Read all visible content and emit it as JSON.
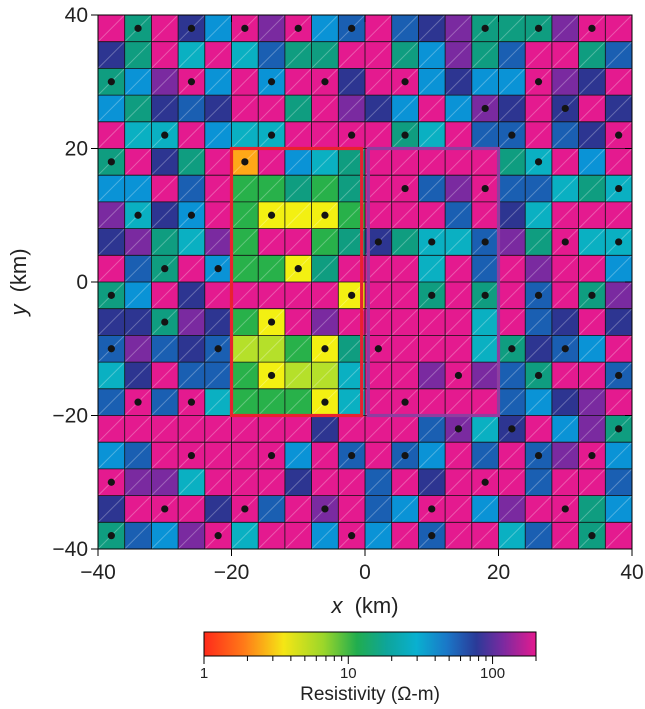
{
  "chart_data": {
    "type": "heatmap",
    "xlabel_var": "x",
    "xlabel_unit": "(km)",
    "ylabel_var": "y",
    "ylabel_unit": "(km)",
    "xlim": [
      -40,
      40
    ],
    "ylim": [
      -40,
      40
    ],
    "x_ticks": [
      -40,
      -20,
      0,
      20,
      40
    ],
    "y_ticks": [
      -40,
      -20,
      0,
      20,
      40
    ],
    "x_tick_labels": [
      "−40",
      "−20",
      "0",
      "20",
      "40"
    ],
    "y_tick_labels": [
      "−40",
      "−20",
      "0",
      "20",
      "40"
    ],
    "cell_size_km": 4,
    "palette": [
      "#ff2a1a",
      "#ffa818",
      "#f3f012",
      "#b5e02a",
      "#28b14a",
      "#0f9d80",
      "#0ab0c2",
      "#0a93d6",
      "#1a5fb2",
      "#2d3591",
      "#7a2aa0",
      "#e41a8f"
    ],
    "cells": [
      [
        11,
        5,
        11,
        9,
        7,
        11,
        10,
        11,
        7,
        8,
        11,
        8,
        9,
        10,
        5,
        5,
        5,
        10,
        11,
        11
      ],
      [
        9,
        5,
        11,
        6,
        11,
        6,
        8,
        5,
        5,
        11,
        11,
        5,
        7,
        10,
        5,
        8,
        11,
        11,
        5,
        8
      ],
      [
        5,
        7,
        10,
        11,
        7,
        11,
        7,
        11,
        11,
        9,
        11,
        11,
        7,
        9,
        7,
        7,
        11,
        10,
        9,
        11
      ],
      [
        7,
        5,
        9,
        8,
        9,
        11,
        11,
        5,
        11,
        10,
        9,
        7,
        11,
        7,
        10,
        9,
        11,
        9,
        11,
        9
      ],
      [
        11,
        6,
        6,
        11,
        7,
        6,
        6,
        11,
        11,
        11,
        11,
        5,
        6,
        11,
        8,
        8,
        11,
        8,
        9,
        11
      ],
      [
        5,
        11,
        9,
        5,
        11,
        1,
        11,
        7,
        6,
        5,
        11,
        11,
        11,
        11,
        11,
        5,
        6,
        11,
        7,
        11
      ],
      [
        7,
        7,
        11,
        8,
        11,
        4,
        4,
        5,
        4,
        5,
        11,
        11,
        8,
        10,
        11,
        8,
        8,
        6,
        5,
        6
      ],
      [
        10,
        6,
        9,
        7,
        11,
        4,
        2,
        2,
        2,
        4,
        11,
        11,
        11,
        8,
        11,
        9,
        6,
        11,
        11,
        11
      ],
      [
        9,
        10,
        5,
        6,
        10,
        4,
        11,
        11,
        4,
        5,
        9,
        5,
        6,
        6,
        8,
        10,
        5,
        11,
        6,
        6
      ],
      [
        11,
        8,
        5,
        11,
        7,
        4,
        4,
        2,
        5,
        11,
        11,
        11,
        6,
        11,
        8,
        11,
        10,
        11,
        11,
        7
      ],
      [
        5,
        7,
        11,
        9,
        11,
        11,
        11,
        11,
        11,
        2,
        11,
        11,
        5,
        11,
        5,
        11,
        8,
        11,
        5,
        10
      ],
      [
        9,
        9,
        5,
        10,
        9,
        4,
        2,
        11,
        10,
        11,
        11,
        11,
        11,
        11,
        6,
        11,
        8,
        9,
        11,
        9
      ],
      [
        8,
        10,
        8,
        9,
        8,
        3,
        3,
        4,
        2,
        5,
        11,
        11,
        11,
        11,
        6,
        5,
        9,
        8,
        7,
        11
      ],
      [
        6,
        9,
        11,
        8,
        8,
        4,
        2,
        3,
        3,
        6,
        11,
        11,
        10,
        11,
        10,
        8,
        5,
        11,
        11,
        8
      ],
      [
        8,
        11,
        8,
        11,
        6,
        4,
        4,
        4,
        2,
        6,
        11,
        11,
        11,
        11,
        11,
        8,
        7,
        9,
        10,
        11
      ],
      [
        11,
        11,
        11,
        11,
        11,
        11,
        11,
        11,
        9,
        11,
        11,
        11,
        8,
        10,
        6,
        9,
        11,
        7,
        10,
        5
      ],
      [
        7,
        8,
        11,
        11,
        11,
        11,
        11,
        7,
        11,
        8,
        11,
        8,
        7,
        11,
        8,
        11,
        8,
        10,
        11,
        7
      ],
      [
        11,
        10,
        10,
        6,
        11,
        11,
        11,
        9,
        11,
        11,
        8,
        11,
        9,
        11,
        11,
        11,
        8,
        11,
        11,
        8
      ],
      [
        9,
        11,
        11,
        11,
        9,
        11,
        8,
        11,
        10,
        11,
        8,
        7,
        11,
        11,
        7,
        10,
        11,
        11,
        5,
        7
      ],
      [
        5,
        8,
        7,
        10,
        11,
        6,
        11,
        11,
        7,
        11,
        7,
        11,
        8,
        11,
        11,
        6,
        8,
        11,
        5,
        11
      ]
    ],
    "station_points": [
      [
        -34,
        38
      ],
      [
        -26,
        38
      ],
      [
        -18,
        38
      ],
      [
        -10,
        38
      ],
      [
        -2,
        38
      ],
      [
        18,
        38
      ],
      [
        26,
        38
      ],
      [
        34,
        38
      ],
      [
        -38,
        30
      ],
      [
        -26,
        30
      ],
      [
        -14,
        30
      ],
      [
        -6,
        30
      ],
      [
        6,
        30
      ],
      [
        26,
        30
      ],
      [
        18,
        26
      ],
      [
        30,
        26
      ],
      [
        -30,
        22
      ],
      [
        -14,
        22
      ],
      [
        -2,
        22
      ],
      [
        6,
        22
      ],
      [
        22,
        22
      ],
      [
        38,
        22
      ],
      [
        -38,
        18
      ],
      [
        -18,
        18
      ],
      [
        26,
        18
      ],
      [
        6,
        14
      ],
      [
        18,
        14
      ],
      [
        38,
        14
      ],
      [
        -34,
        10
      ],
      [
        -26,
        10
      ],
      [
        -14,
        10
      ],
      [
        -6,
        10
      ],
      [
        2,
        6
      ],
      [
        10,
        6
      ],
      [
        18,
        6
      ],
      [
        30,
        6
      ],
      [
        38,
        6
      ],
      [
        -30,
        2
      ],
      [
        -22,
        2
      ],
      [
        -10,
        2
      ],
      [
        -38,
        -2
      ],
      [
        -2,
        -2
      ],
      [
        10,
        -2
      ],
      [
        18,
        -2
      ],
      [
        26,
        -2
      ],
      [
        34,
        -2
      ],
      [
        -30,
        -6
      ],
      [
        -14,
        -6
      ],
      [
        -38,
        -10
      ],
      [
        -22,
        -10
      ],
      [
        -6,
        -10
      ],
      [
        2,
        -10
      ],
      [
        22,
        -10
      ],
      [
        30,
        -10
      ],
      [
        -14,
        -14
      ],
      [
        14,
        -14
      ],
      [
        26,
        -14
      ],
      [
        38,
        -14
      ],
      [
        -34,
        -18
      ],
      [
        -26,
        -18
      ],
      [
        -6,
        -18
      ],
      [
        6,
        -18
      ],
      [
        14,
        -22
      ],
      [
        22,
        -22
      ],
      [
        38,
        -22
      ],
      [
        -26,
        -26
      ],
      [
        -14,
        -26
      ],
      [
        -2,
        -26
      ],
      [
        6,
        -26
      ],
      [
        26,
        -26
      ],
      [
        34,
        -26
      ],
      [
        -38,
        -30
      ],
      [
        18,
        -30
      ],
      [
        -30,
        -34
      ],
      [
        -18,
        -34
      ],
      [
        -6,
        -34
      ],
      [
        10,
        -34
      ],
      [
        30,
        -34
      ],
      [
        -38,
        -38
      ],
      [
        -22,
        -38
      ],
      [
        -2,
        -38
      ],
      [
        10,
        -38
      ],
      [
        34,
        -38
      ]
    ],
    "regions": [
      {
        "color": "#e8222f",
        "x0": -20,
        "x1": -0.5,
        "y0": -20,
        "y1": 20
      },
      {
        "color": "#8e3ea0",
        "x0": 0.5,
        "x1": 20,
        "y0": -20,
        "y1": 20
      }
    ],
    "colorbar": {
      "title": "Resistivity (Ω-m)",
      "min": 1,
      "max": 200,
      "scale": "log",
      "ticks": [
        1,
        10,
        100
      ],
      "tick_labels": [
        "1",
        "10",
        "100"
      ]
    }
  }
}
